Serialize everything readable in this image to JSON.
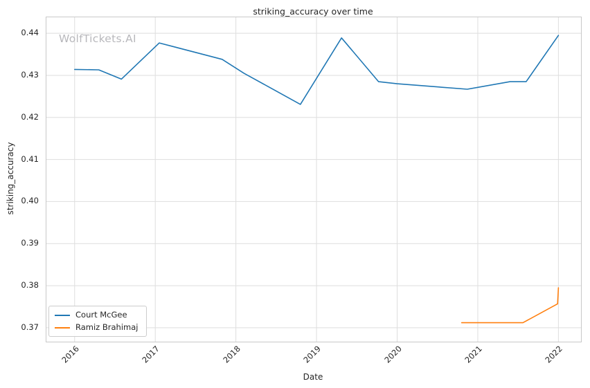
{
  "watermark": "WolfTickets.AI",
  "chart_data": {
    "type": "line",
    "title": "striking_accuracy over time",
    "xlabel": "Date",
    "ylabel": "striking_accuracy",
    "xlim": [
      2015.65,
      2022.28
    ],
    "ylim": [
      0.3667,
      0.4438
    ],
    "xticks": [
      2016,
      2017,
      2018,
      2019,
      2020,
      2021,
      2022
    ],
    "yticks": [
      0.37,
      0.38,
      0.39,
      0.4,
      0.41,
      0.42,
      0.43,
      0.44
    ],
    "grid": true,
    "grid_color": "#dedede",
    "legend_position": "lower left",
    "series": [
      {
        "name": "Court McGee",
        "color": "#1f77b4",
        "points": [
          [
            2016.0,
            0.4314
          ],
          [
            2016.3,
            0.4313
          ],
          [
            2016.58,
            0.4291
          ],
          [
            2017.05,
            0.4377
          ],
          [
            2017.83,
            0.4338
          ],
          [
            2018.1,
            0.4305
          ],
          [
            2018.8,
            0.4231
          ],
          [
            2019.31,
            0.4389
          ],
          [
            2019.77,
            0.4285
          ],
          [
            2020.0,
            0.428
          ],
          [
            2020.87,
            0.4267
          ],
          [
            2021.4,
            0.4285
          ],
          [
            2021.6,
            0.4285
          ],
          [
            2022.0,
            0.4395
          ]
        ]
      },
      {
        "name": "Ramiz Brahimaj",
        "color": "#ff7f0e",
        "points": [
          [
            2020.8,
            0.3712
          ],
          [
            2021.56,
            0.3712
          ],
          [
            2021.99,
            0.3757
          ],
          [
            2022.0,
            0.3795
          ]
        ]
      }
    ]
  }
}
